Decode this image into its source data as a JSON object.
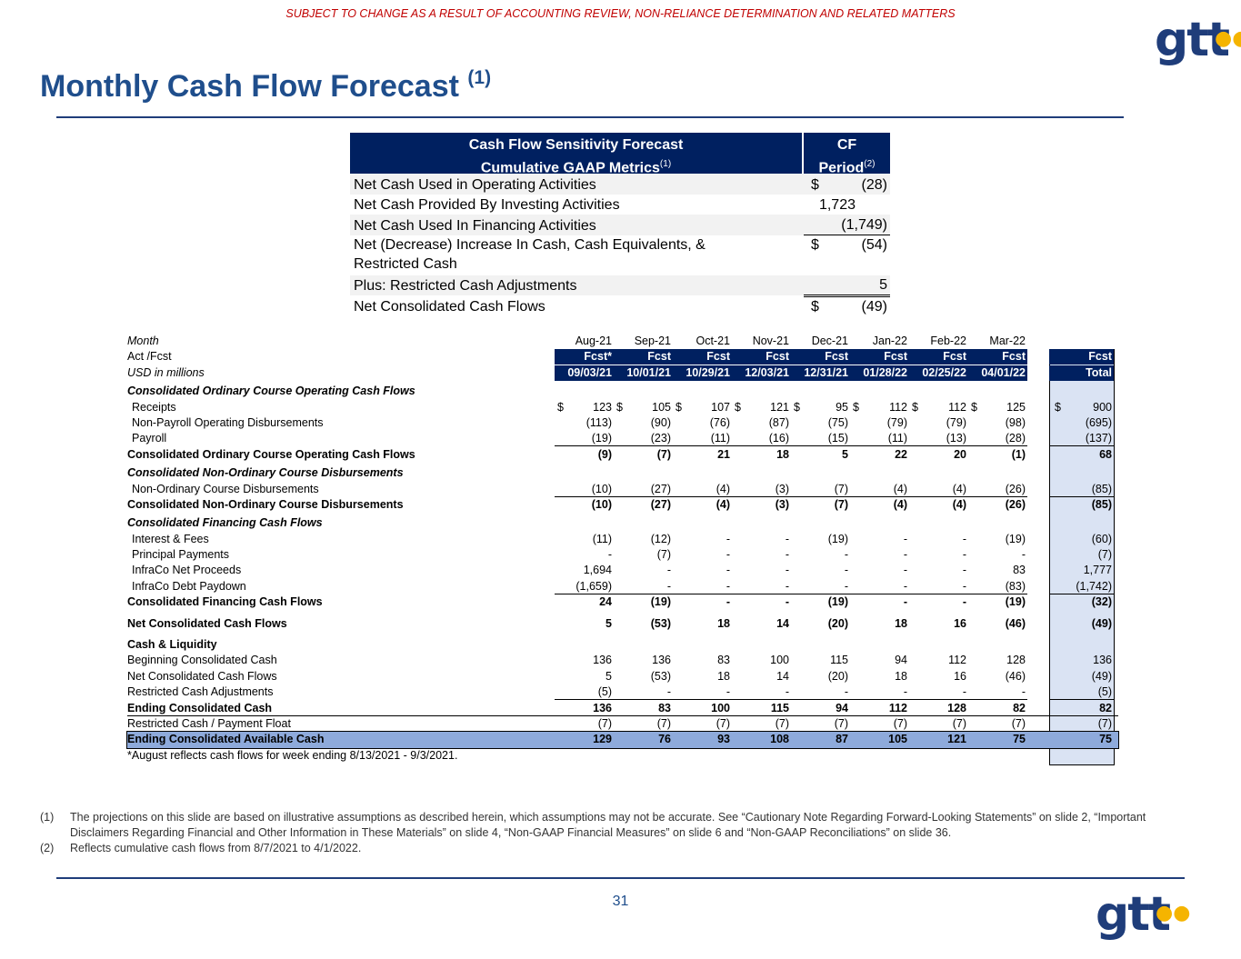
{
  "header": {
    "disclaimer": "SUBJECT TO CHANGE AS A RESULT OF ACCOUNTING REVIEW, NON-RELIANCE DETERMINATION AND RELATED MATTERS",
    "logo_text": "gtt",
    "logo_dots": "●●",
    "title": "Monthly Cash Flow Forecast",
    "title_note": "(1)"
  },
  "sensitivity": {
    "head_line1": "Cash Flow Sensitivity Forecast",
    "head_line2": "Cumulative GAAP Metrics",
    "head_line2_note": "(1)",
    "col_line1": "CF",
    "col_line2": "Period",
    "col_line2_note": "(2)",
    "rows": [
      {
        "label": "Net Cash Used in Operating Activities",
        "dollar": "$",
        "value": "(28)"
      },
      {
        "label": "Net Cash Provided By Investing Activities",
        "dollar": "",
        "value": "1,723"
      },
      {
        "label": "Net Cash Used In Financing Activities",
        "dollar": "",
        "value": "(1,749)"
      },
      {
        "label": "Net (Decrease) Increase In Cash, Cash Equivalents, & Restricted Cash",
        "dollar": "$",
        "value": "(54)"
      },
      {
        "label": "Plus: Restricted Cash Adjustments",
        "dollar": "",
        "value": "5"
      },
      {
        "label": "Net Consolidated Cash Flows",
        "dollar": "$",
        "value": "(49)"
      }
    ]
  },
  "table": {
    "month_label": "Month",
    "actfcst_label": "Act /Fcst",
    "usd_label": "USD in millions",
    "months": [
      "Aug-21",
      "Sep-21",
      "Oct-21",
      "Nov-21",
      "Dec-21",
      "Jan-22",
      "Feb-22",
      "Mar-22"
    ],
    "types": [
      "Fcst*",
      "Fcst",
      "Fcst",
      "Fcst",
      "Fcst",
      "Fcst",
      "Fcst",
      "Fcst"
    ],
    "dates": [
      "09/03/21",
      "10/01/21",
      "10/29/21",
      "12/03/21",
      "12/31/21",
      "01/28/22",
      "02/25/22",
      "04/01/22"
    ],
    "total_type": "Fcst",
    "total_label": "Total",
    "sec_operating": "Consolidated Ordinary Course Operating Cash Flows",
    "receipts": {
      "label": "Receipts",
      "values": [
        "123",
        "105",
        "107",
        "121",
        "95",
        "112",
        "112",
        "125"
      ],
      "total": "900"
    },
    "nonpayroll": {
      "label": "Non-Payroll Operating Disbursements",
      "values": [
        "(113)",
        "(90)",
        "(76)",
        "(87)",
        "(75)",
        "(79)",
        "(79)",
        "(98)"
      ],
      "total": "(695)"
    },
    "payroll": {
      "label": "Payroll",
      "values": [
        "(19)",
        "(23)",
        "(11)",
        "(16)",
        "(15)",
        "(11)",
        "(13)",
        "(28)"
      ],
      "total": "(137)"
    },
    "operating_total": {
      "label": "Consolidated Ordinary Course Operating Cash Flows",
      "values": [
        "(9)",
        "(7)",
        "21",
        "18",
        "5",
        "22",
        "20",
        "(1)"
      ],
      "total": "68"
    },
    "sec_nonordinary": "Consolidated Non-Ordinary Course Disbursements",
    "nonordinary": {
      "label": "Non-Ordinary Course Disbursements",
      "values": [
        "(10)",
        "(27)",
        "(4)",
        "(3)",
        "(7)",
        "(4)",
        "(4)",
        "(26)"
      ],
      "total": "(85)"
    },
    "nonordinary_total": {
      "label": "Consolidated Non-Ordinary Course Disbursements",
      "values": [
        "(10)",
        "(27)",
        "(4)",
        "(3)",
        "(7)",
        "(4)",
        "(4)",
        "(26)"
      ],
      "total": "(85)"
    },
    "sec_financing": "Consolidated Financing Cash Flows",
    "interest": {
      "label": "Interest & Fees",
      "values": [
        "(11)",
        "(12)",
        "-",
        "-",
        "(19)",
        "-",
        "-",
        "(19)"
      ],
      "total": "(60)"
    },
    "principal": {
      "label": "Principal Payments",
      "values": [
        "-",
        "(7)",
        "-",
        "-",
        "-",
        "-",
        "-",
        "-"
      ],
      "total": "(7)"
    },
    "infraco_proceeds": {
      "label": "InfraCo Net Proceeds",
      "values": [
        "1,694",
        "-",
        "-",
        "-",
        "-",
        "-",
        "-",
        "83"
      ],
      "total": "1,777"
    },
    "infraco_paydown": {
      "label": "InfraCo Debt Paydown",
      "values": [
        "(1,659)",
        "-",
        "-",
        "-",
        "-",
        "-",
        "-",
        "(83)"
      ],
      "total": "(1,742)"
    },
    "financing_total": {
      "label": "Consolidated Financing Cash Flows",
      "values": [
        "24",
        "(19)",
        "-",
        "-",
        "(19)",
        "-",
        "-",
        "(19)"
      ],
      "total": "(32)"
    },
    "net_cash_flows": {
      "label": "Net Consolidated Cash Flows",
      "values": [
        "5",
        "(53)",
        "18",
        "14",
        "(20)",
        "18",
        "16",
        "(46)"
      ],
      "total": "(49)"
    },
    "sec_liquidity": "Cash & Liquidity",
    "beginning_cash": {
      "label": "Beginning Consolidated Cash",
      "values": [
        "136",
        "136",
        "83",
        "100",
        "115",
        "94",
        "112",
        "128"
      ],
      "total": "136"
    },
    "net_cash_flows2": {
      "label": "Net Consolidated Cash Flows",
      "values": [
        "5",
        "(53)",
        "18",
        "14",
        "(20)",
        "18",
        "16",
        "(46)"
      ],
      "total": "(49)"
    },
    "restricted_adj": {
      "label": "Restricted Cash Adjustments",
      "values": [
        "(5)",
        "-",
        "-",
        "-",
        "-",
        "-",
        "-",
        "-"
      ],
      "total": "(5)"
    },
    "ending_cash": {
      "label": "Ending Consolidated Cash",
      "values": [
        "136",
        "83",
        "100",
        "115",
        "94",
        "112",
        "128",
        "82"
      ],
      "total": "82"
    },
    "restricted_float": {
      "label": "Restricted Cash / Payment Float",
      "values": [
        "(7)",
        "(7)",
        "(7)",
        "(7)",
        "(7)",
        "(7)",
        "(7)",
        "(7)"
      ],
      "total": "(7)"
    },
    "ending_available": {
      "label": "Ending Consolidated Available Cash",
      "values": [
        "129",
        "76",
        "93",
        "108",
        "87",
        "105",
        "121",
        "75"
      ],
      "total": "75"
    },
    "note": "*August reflects cash flows for week ending 8/13/2021 - 9/3/2021.",
    "dollar": "$"
  },
  "footnotes": [
    {
      "num": "(1)",
      "text": "The projections on this slide are based on illustrative assumptions as described herein, which assumptions may not be accurate. See “Cautionary Note Regarding Forward-Looking Statements” on slide 2, “Important Disclaimers Regarding Financial and Other Information in These Materials” on slide 4, “Non-GAAP Financial Measures” on slide 6 and “Non-GAAP Reconciliations” on slide 36."
    },
    {
      "num": "(2)",
      "text": "Reflects cumulative cash flows from 8/7/2021 to 4/1/2022."
    }
  ],
  "page_number": "31"
}
